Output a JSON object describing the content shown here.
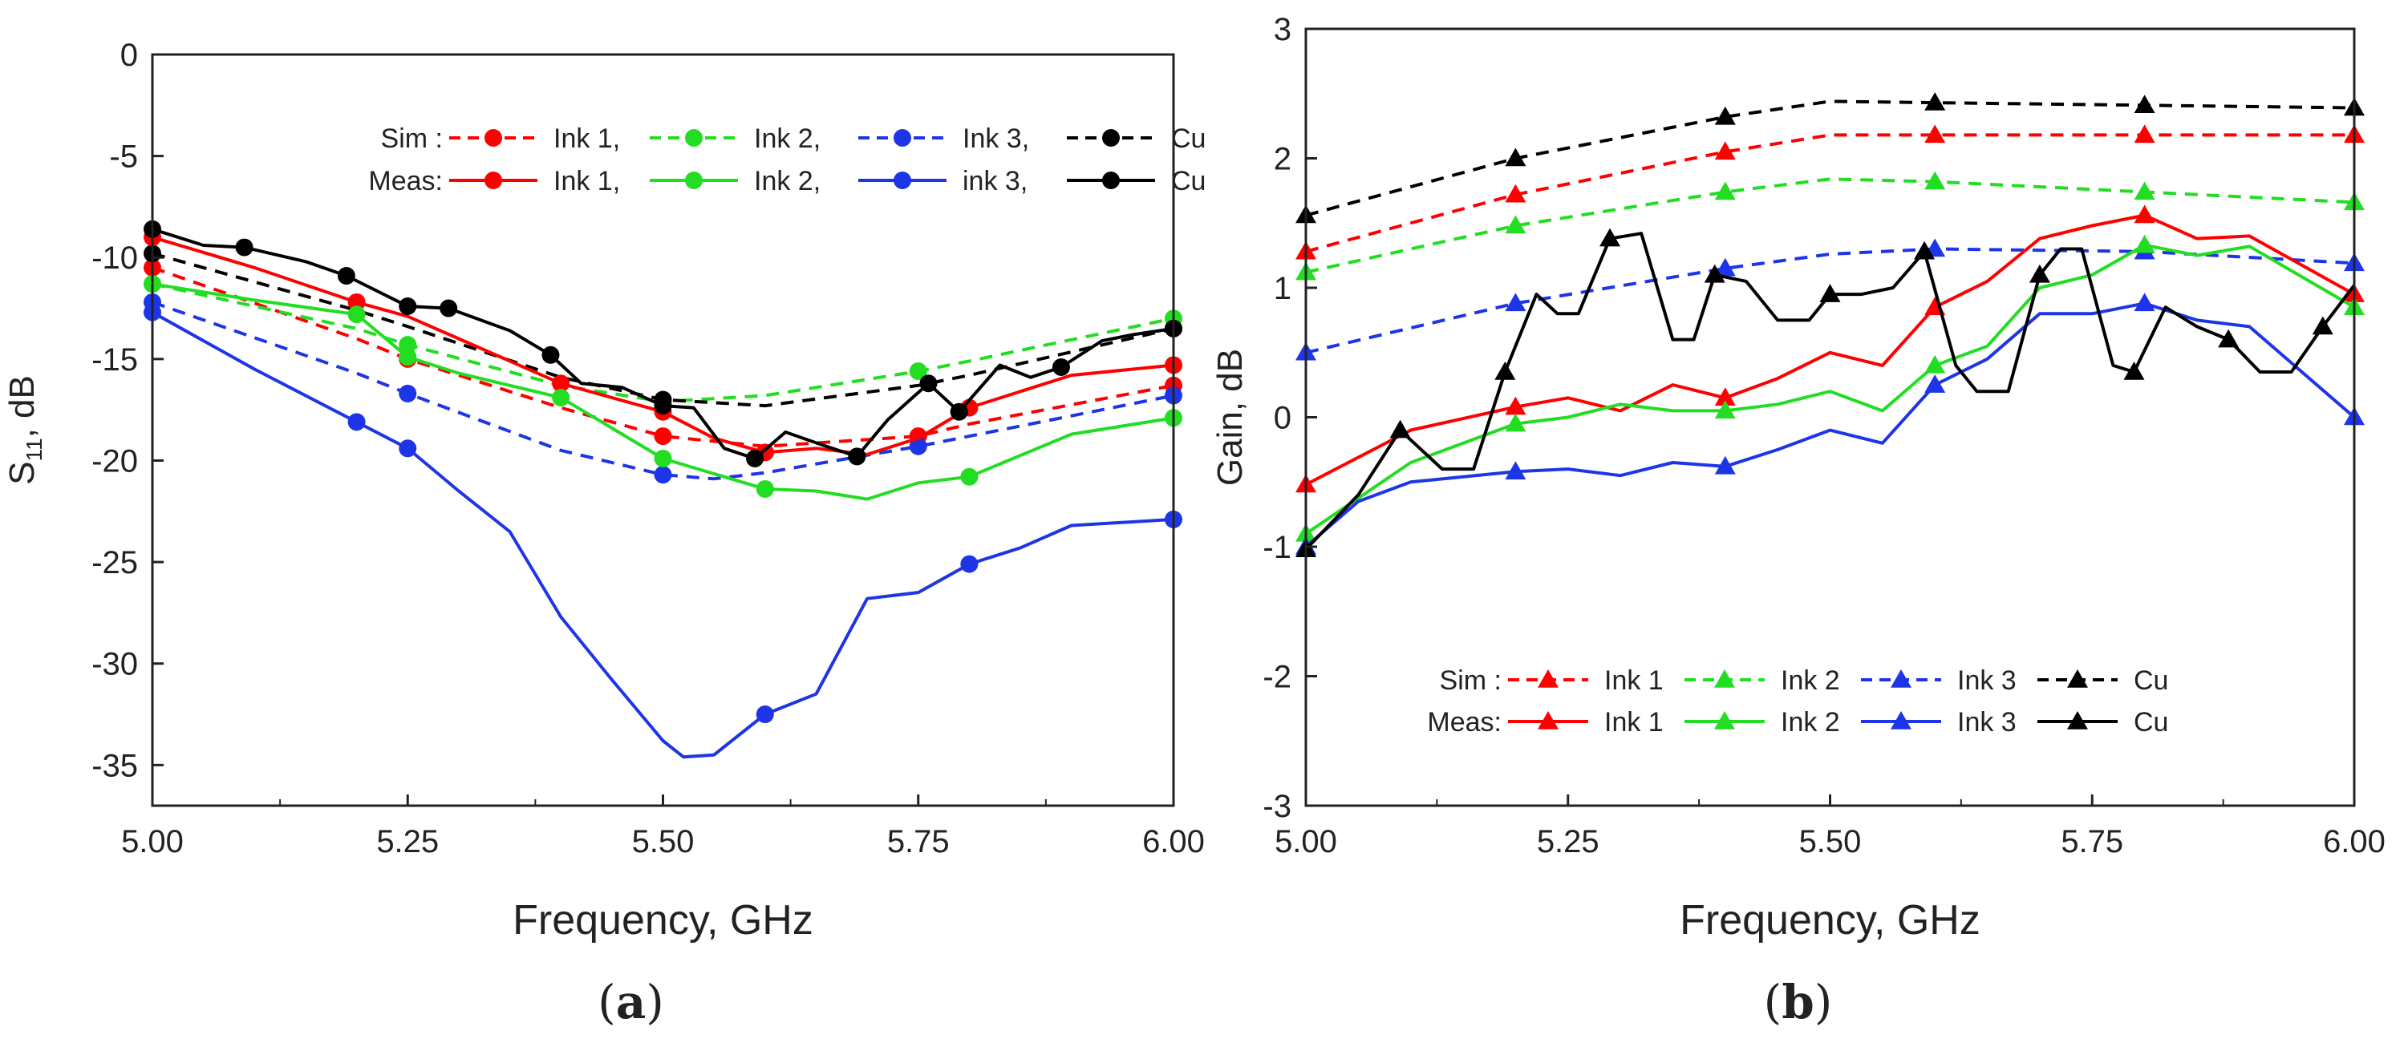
{
  "chart_data": [
    {
      "id": "a",
      "type": "line",
      "panel_label": "(a)",
      "panel_letter": "a",
      "xlabel": "Frequency, GHz",
      "ylabel": "S",
      "ylabel_sub": "11",
      "ylabel_unit": ", dB",
      "xlim": [
        5.0,
        6.0
      ],
      "ylim": [
        -37,
        0
      ],
      "xticks": [
        5.0,
        5.25,
        5.5,
        5.75,
        6.0
      ],
      "xtick_labels": [
        "5.00",
        "5.25",
        "5.50",
        "5.75",
        "6.00"
      ],
      "yticks": [
        0,
        -5,
        -10,
        -15,
        -20,
        -25,
        -30,
        -35
      ],
      "ytick_labels": [
        "0",
        "-5",
        "-10",
        "-15",
        "-20",
        "-25",
        "-30",
        "-35"
      ],
      "marker": "circle",
      "legend": {
        "position": "top-center",
        "sim_prefix": "Sim :",
        "meas_prefix": "Meas:",
        "sim_labels": [
          "Ink 1,",
          "Ink 2,",
          "Ink 3,",
          "Cu"
        ],
        "meas_labels": [
          "Ink 1,",
          "Ink 2,",
          "ink 3,",
          "Cu"
        ]
      },
      "series": [
        {
          "name": "Sim Ink 1",
          "color": "#ff0000",
          "dash": true,
          "x": [
            5.0,
            5.2,
            5.25,
            5.4,
            5.5,
            5.6,
            5.75,
            5.8,
            6.0
          ],
          "y": [
            -10.5,
            -14.0,
            -15.0,
            -17.4,
            -18.8,
            -19.3,
            -18.8,
            -18.2,
            -16.3
          ],
          "marker_x": [
            5.0,
            5.25,
            5.5,
            5.75,
            6.0
          ]
        },
        {
          "name": "Sim Ink 2",
          "color": "#22dd22",
          "dash": true,
          "x": [
            5.0,
            5.2,
            5.25,
            5.4,
            5.5,
            5.6,
            5.75,
            5.8,
            6.0
          ],
          "y": [
            -11.3,
            -13.5,
            -14.3,
            -16.3,
            -17.1,
            -16.8,
            -15.6,
            -15.1,
            -13.0
          ],
          "marker_x": [
            5.0,
            5.25,
            5.5,
            5.75,
            6.0
          ]
        },
        {
          "name": "Sim Ink 3",
          "color": "#1d35e6",
          "dash": true,
          "x": [
            5.0,
            5.2,
            5.25,
            5.4,
            5.5,
            5.55,
            5.6,
            5.75,
            5.8,
            6.0
          ],
          "y": [
            -12.2,
            -15.7,
            -16.7,
            -19.5,
            -20.7,
            -20.9,
            -20.6,
            -19.3,
            -18.8,
            -16.8
          ],
          "marker_x": [
            5.0,
            5.25,
            5.5,
            5.75,
            6.0
          ]
        },
        {
          "name": "Sim Cu",
          "color": "#000000",
          "dash": true,
          "x": [
            5.0,
            5.2,
            5.25,
            5.4,
            5.5,
            5.6,
            5.75,
            5.8,
            6.0
          ],
          "y": [
            -9.8,
            -12.6,
            -13.4,
            -15.9,
            -17.0,
            -17.3,
            -16.3,
            -15.8,
            -13.5
          ],
          "marker_x": [
            5.0,
            5.5,
            6.0
          ]
        },
        {
          "name": "Meas Ink 1",
          "color": "#ff0000",
          "dash": false,
          "x": [
            5.0,
            5.1,
            5.2,
            5.25,
            5.3,
            5.4,
            5.5,
            5.55,
            5.6,
            5.65,
            5.7,
            5.75,
            5.8,
            5.9,
            6.0
          ],
          "y": [
            -9.0,
            -10.5,
            -12.2,
            -12.9,
            -14.0,
            -16.2,
            -17.6,
            -18.9,
            -19.6,
            -19.4,
            -19.7,
            -18.9,
            -17.4,
            -15.8,
            -15.3
          ],
          "marker_x": [
            5.0,
            5.2,
            5.4,
            5.5,
            5.6,
            5.8,
            6.0
          ]
        },
        {
          "name": "Meas Ink 2",
          "color": "#22dd22",
          "dash": false,
          "x": [
            5.0,
            5.1,
            5.2,
            5.25,
            5.3,
            5.4,
            5.5,
            5.6,
            5.65,
            5.7,
            5.75,
            5.8,
            5.9,
            6.0
          ],
          "y": [
            -11.3,
            -12.1,
            -12.8,
            -14.9,
            -15.7,
            -16.9,
            -19.9,
            -21.4,
            -21.5,
            -21.9,
            -21.1,
            -20.8,
            -18.7,
            -17.9
          ],
          "marker_x": [
            5.0,
            5.2,
            5.25,
            5.4,
            5.5,
            5.6,
            5.8,
            6.0
          ]
        },
        {
          "name": "Meas Ink 3",
          "color": "#1d35e6",
          "dash": false,
          "x": [
            5.0,
            5.1,
            5.2,
            5.25,
            5.3,
            5.35,
            5.4,
            5.45,
            5.5,
            5.52,
            5.55,
            5.6,
            5.65,
            5.7,
            5.75,
            5.8,
            5.85,
            5.9,
            6.0
          ],
          "y": [
            -12.7,
            -15.5,
            -18.1,
            -19.4,
            -21.5,
            -23.5,
            -27.7,
            -30.8,
            -33.8,
            -34.6,
            -34.5,
            -32.5,
            -31.5,
            -26.8,
            -26.5,
            -25.1,
            -24.3,
            -23.2,
            -22.9
          ],
          "marker_x": [
            5.0,
            5.2,
            5.25,
            5.6,
            5.8,
            6.0
          ]
        },
        {
          "name": "Meas Cu",
          "color": "#000000",
          "dash": false,
          "x": [
            5.0,
            5.05,
            5.09,
            5.15,
            5.19,
            5.25,
            5.29,
            5.35,
            5.39,
            5.42,
            5.46,
            5.5,
            5.53,
            5.56,
            5.59,
            5.62,
            5.66,
            5.69,
            5.72,
            5.76,
            5.79,
            5.83,
            5.86,
            5.89,
            5.93,
            5.96,
            6.0
          ],
          "y": [
            -8.6,
            -9.4,
            -9.5,
            -10.2,
            -10.9,
            -12.4,
            -12.5,
            -13.6,
            -14.8,
            -16.2,
            -16.4,
            -17.3,
            -17.4,
            -19.4,
            -19.9,
            -18.6,
            -19.3,
            -19.8,
            -18.0,
            -16.2,
            -17.6,
            -15.3,
            -15.9,
            -15.4,
            -14.1,
            -13.8,
            -13.5
          ],
          "marker_x": [
            5.0,
            5.09,
            5.19,
            5.25,
            5.29,
            5.39,
            5.5,
            5.59,
            5.69,
            5.76,
            5.79,
            5.89,
            6.0
          ]
        }
      ]
    },
    {
      "id": "b",
      "type": "line",
      "panel_label": "(b)",
      "panel_letter": "b",
      "xlabel": "Frequency, GHz",
      "ylabel": "Gain, dB",
      "xlim": [
        5.0,
        6.0
      ],
      "ylim": [
        -3,
        3
      ],
      "xticks": [
        5.0,
        5.25,
        5.5,
        5.75,
        6.0
      ],
      "xtick_labels": [
        "5.00",
        "5.25",
        "5.50",
        "5.75",
        "6.00"
      ],
      "yticks": [
        3,
        2,
        1,
        0,
        -1,
        -2,
        -3
      ],
      "ytick_labels": [
        "3",
        "2",
        "1",
        "0",
        "-1",
        "-2",
        "-3"
      ],
      "marker": "triangle",
      "legend": {
        "position": "bottom-center",
        "sim_prefix": "Sim :",
        "meas_prefix": "Meas:",
        "sim_labels": [
          "Ink 1",
          "Ink 2",
          "Ink 3",
          "Cu"
        ],
        "meas_labels": [
          "Ink 1",
          "Ink 2",
          "Ink 3",
          "Cu"
        ]
      },
      "series": [
        {
          "name": "Sim Ink 1",
          "color": "#ff0000",
          "dash": true,
          "x": [
            5.0,
            5.2,
            5.4,
            5.5,
            5.6,
            5.8,
            6.0
          ],
          "y": [
            1.28,
            1.72,
            2.05,
            2.18,
            2.18,
            2.18,
            2.18
          ],
          "marker_x": [
            5.0,
            5.2,
            5.4,
            5.6,
            5.8,
            6.0
          ]
        },
        {
          "name": "Sim Ink 2",
          "color": "#22dd22",
          "dash": true,
          "x": [
            5.0,
            5.2,
            5.4,
            5.5,
            5.6,
            5.8,
            6.0
          ],
          "y": [
            1.12,
            1.48,
            1.74,
            1.84,
            1.82,
            1.74,
            1.66
          ],
          "marker_x": [
            5.0,
            5.2,
            5.4,
            5.6,
            5.8,
            6.0
          ]
        },
        {
          "name": "Sim Ink 3",
          "color": "#1d35e6",
          "dash": true,
          "x": [
            5.0,
            5.2,
            5.4,
            5.5,
            5.6,
            5.8,
            6.0
          ],
          "y": [
            0.5,
            0.88,
            1.15,
            1.26,
            1.3,
            1.28,
            1.19
          ],
          "marker_x": [
            5.0,
            5.2,
            5.4,
            5.6,
            5.8,
            6.0
          ]
        },
        {
          "name": "Sim Cu",
          "color": "#000000",
          "dash": true,
          "x": [
            5.0,
            5.2,
            5.4,
            5.5,
            5.6,
            5.8,
            6.0
          ],
          "y": [
            1.56,
            2.0,
            2.32,
            2.44,
            2.43,
            2.41,
            2.39
          ],
          "marker_x": [
            5.0,
            5.2,
            5.4,
            5.6,
            5.8,
            6.0
          ]
        },
        {
          "name": "Meas Ink 1",
          "color": "#ff0000",
          "dash": false,
          "x": [
            5.0,
            5.1,
            5.2,
            5.25,
            5.3,
            5.35,
            5.4,
            5.45,
            5.5,
            5.55,
            5.6,
            5.65,
            5.7,
            5.75,
            5.8,
            5.85,
            5.9,
            6.0
          ],
          "y": [
            -0.52,
            -0.1,
            0.08,
            0.15,
            0.05,
            0.25,
            0.15,
            0.3,
            0.5,
            0.4,
            0.85,
            1.05,
            1.38,
            1.48,
            1.56,
            1.38,
            1.4,
            0.95
          ],
          "marker_x": [
            5.0,
            5.2,
            5.4,
            5.6,
            5.8,
            6.0
          ]
        },
        {
          "name": "Meas Ink 2",
          "color": "#22dd22",
          "dash": false,
          "x": [
            5.0,
            5.1,
            5.2,
            5.25,
            5.3,
            5.35,
            5.4,
            5.45,
            5.5,
            5.55,
            5.6,
            5.65,
            5.7,
            5.75,
            5.8,
            5.85,
            5.9,
            6.0
          ],
          "y": [
            -0.9,
            -0.35,
            -0.05,
            0.0,
            0.1,
            0.05,
            0.05,
            0.1,
            0.2,
            0.05,
            0.4,
            0.55,
            1.0,
            1.1,
            1.33,
            1.25,
            1.32,
            0.85
          ],
          "marker_x": [
            5.0,
            5.2,
            5.4,
            5.6,
            5.8,
            6.0
          ]
        },
        {
          "name": "Meas Ink 3",
          "color": "#1d35e6",
          "dash": false,
          "x": [
            5.0,
            5.05,
            5.1,
            5.2,
            5.25,
            5.3,
            5.35,
            5.4,
            5.45,
            5.5,
            5.55,
            5.6,
            5.65,
            5.7,
            5.75,
            5.8,
            5.85,
            5.9,
            6.0
          ],
          "y": [
            -1.0,
            -0.65,
            -0.5,
            -0.42,
            -0.4,
            -0.45,
            -0.35,
            -0.38,
            -0.25,
            -0.1,
            -0.2,
            0.25,
            0.45,
            0.8,
            0.8,
            0.88,
            0.75,
            0.7,
            0.0
          ],
          "marker_x": [
            5.0,
            5.2,
            5.4,
            5.6,
            5.8,
            6.0
          ]
        },
        {
          "name": "Meas Cu",
          "color": "#000000",
          "dash": false,
          "x": [
            5.0,
            5.05,
            5.09,
            5.13,
            5.16,
            5.19,
            5.22,
            5.24,
            5.26,
            5.29,
            5.32,
            5.35,
            5.37,
            5.39,
            5.42,
            5.45,
            5.48,
            5.5,
            5.53,
            5.56,
            5.59,
            5.62,
            5.64,
            5.67,
            5.7,
            5.72,
            5.74,
            5.77,
            5.79,
            5.82,
            5.85,
            5.88,
            5.91,
            5.94,
            5.97,
            6.0
          ],
          "y": [
            -1.02,
            -0.6,
            -0.1,
            -0.4,
            -0.4,
            0.35,
            0.95,
            0.8,
            0.8,
            1.38,
            1.42,
            0.6,
            0.6,
            1.1,
            1.05,
            0.75,
            0.75,
            0.95,
            0.95,
            1.0,
            1.28,
            0.4,
            0.2,
            0.2,
            1.1,
            1.3,
            1.3,
            0.4,
            0.35,
            0.85,
            0.7,
            0.6,
            0.35,
            0.35,
            0.7,
            1.02
          ],
          "marker_x": [
            5.0,
            5.09,
            5.19,
            5.29,
            5.39,
            5.5,
            5.59,
            5.7,
            5.79,
            5.88,
            5.97
          ]
        }
      ]
    }
  ]
}
